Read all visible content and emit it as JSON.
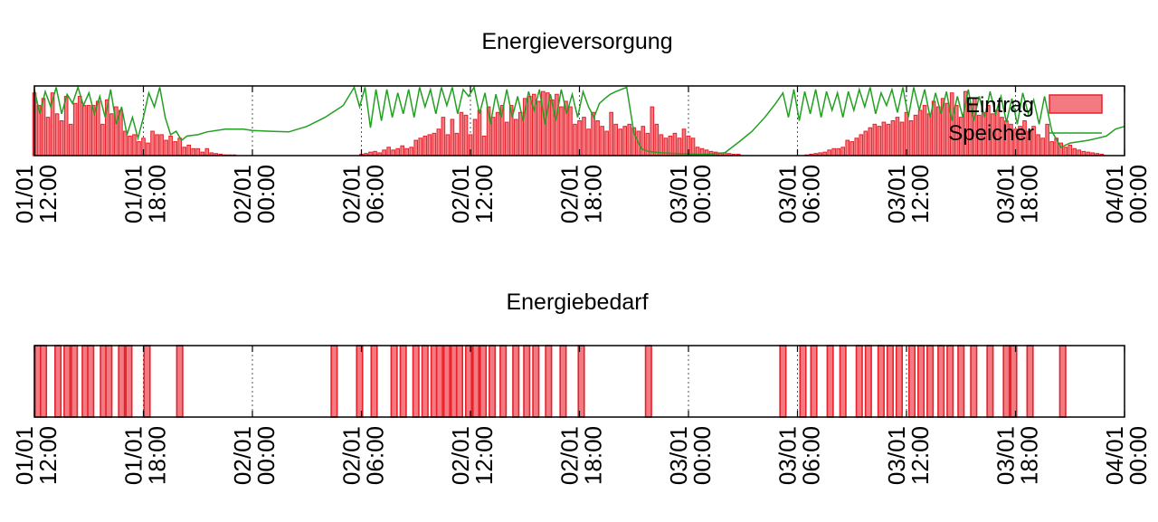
{
  "chart_data": [
    {
      "type": "bar",
      "title": "Energieversorgung",
      "x_range": [
        "01/01 12:00",
        "04/01 00:00"
      ],
      "x_ticks": [
        {
          "h": 0,
          "date": "01/01",
          "time": "12:00"
        },
        {
          "h": 6,
          "date": "01/01",
          "time": "18:00"
        },
        {
          "h": 12,
          "date": "02/01",
          "time": "00:00"
        },
        {
          "h": 18,
          "date": "02/01",
          "time": "06:00"
        },
        {
          "h": 24,
          "date": "02/01",
          "time": "12:00"
        },
        {
          "h": 30,
          "date": "02/01",
          "time": "18:00"
        },
        {
          "h": 36,
          "date": "03/01",
          "time": "00:00"
        },
        {
          "h": 42,
          "date": "03/01",
          "time": "06:00"
        },
        {
          "h": 48,
          "date": "03/01",
          "time": "12:00"
        },
        {
          "h": 54,
          "date": "03/01",
          "time": "18:00"
        },
        {
          "h": 60,
          "date": "04/01",
          "time": "00:00"
        }
      ],
      "ylim": [
        0,
        1
      ],
      "grid": "x only (dotted)",
      "legend": "top-right",
      "series": [
        {
          "name": "Eintrag",
          "kind": "bar",
          "color": "#e8202a",
          "fill": "#f47a82",
          "x_start": 0,
          "x_step": 0.25,
          "values": [
            0.9,
            0.72,
            0.82,
            0.55,
            0.9,
            0.6,
            0.5,
            0.85,
            0.45,
            0.75,
            0.85,
            0.72,
            0.72,
            0.72,
            0.78,
            0.45,
            0.8,
            0.6,
            0.7,
            0.65,
            0.35,
            0.28,
            0.3,
            0.2,
            0.25,
            0.18,
            0.35,
            0.3,
            0.3,
            0.22,
            0.28,
            0.2,
            0.25,
            0.12,
            0.15,
            0.1,
            0.1,
            0.05,
            0.1,
            0.04,
            0.03,
            0.02,
            0.01,
            0.01,
            0.01,
            0,
            0,
            0,
            0,
            0,
            0,
            0,
            0,
            0,
            0,
            0,
            0,
            0,
            0,
            0,
            0,
            0,
            0,
            0,
            0,
            0,
            0,
            0,
            0,
            0,
            0,
            0,
            0.02,
            0.03,
            0.05,
            0.06,
            0.04,
            0.08,
            0.12,
            0.08,
            0.1,
            0.14,
            0.1,
            0.12,
            0.22,
            0.25,
            0.28,
            0.3,
            0.32,
            0.38,
            0.55,
            0.3,
            0.52,
            0.32,
            0.62,
            0.58,
            0.3,
            0.52,
            0.65,
            0.28,
            0.7,
            0.55,
            0.62,
            0.72,
            0.48,
            0.72,
            0.52,
            0.62,
            0.82,
            0.85,
            0.88,
            0.78,
            0.92,
            0.9,
            0.8,
            0.88,
            0.7,
            0.78,
            0.7,
            0.45,
            0.5,
            0.55,
            0.38,
            0.62,
            0.5,
            0.42,
            0.35,
            0.62,
            0.45,
            0.38,
            0.42,
            0.45,
            0.4,
            0.35,
            0.42,
            0.32,
            0.7,
            0.45,
            0.3,
            0.25,
            0.28,
            0.32,
            0.25,
            0.38,
            0.28,
            0.25,
            0.12,
            0.1,
            0.08,
            0.06,
            0.05,
            0.04,
            0.04,
            0.03,
            0.02,
            0.02,
            0,
            0,
            0,
            0,
            0,
            0,
            0,
            0,
            0,
            0,
            0,
            0,
            0,
            0,
            0.01,
            0.02,
            0.03,
            0.04,
            0.05,
            0.08,
            0.1,
            0.1,
            0.12,
            0.22,
            0.2,
            0.25,
            0.3,
            0.35,
            0.4,
            0.45,
            0.42,
            0.48,
            0.45,
            0.5,
            0.55,
            0.48,
            0.62,
            0.5,
            0.58,
            0.65,
            0.72,
            0.6,
            0.78,
            0.7,
            0.82,
            0.75,
            0.9,
            0.72,
            0.55,
            0.92,
            0.75,
            0.82,
            0.58,
            0.62,
            0.72,
            0.6,
            0.65,
            0.55,
            0.5,
            0.45,
            0.38,
            0.42,
            0.5,
            0.35,
            0.42,
            0.3,
            0.25,
            0.45,
            0.2,
            0.25,
            0.18,
            0.12,
            0.15,
            0.1,
            0.08,
            0.06,
            0.05,
            0.04,
            0.03,
            0.02
          ]
        },
        {
          "name": "Speicher",
          "kind": "line",
          "color": "#22a022",
          "points": [
            [
              0,
              0.95
            ],
            [
              0.3,
              0.6
            ],
            [
              0.6,
              0.92
            ],
            [
              0.9,
              0.7
            ],
            [
              1.2,
              0.98
            ],
            [
              1.5,
              0.6
            ],
            [
              1.8,
              0.88
            ],
            [
              2.1,
              0.75
            ],
            [
              2.4,
              0.98
            ],
            [
              2.7,
              0.72
            ],
            [
              3,
              0.9
            ],
            [
              3.3,
              0.6
            ],
            [
              3.6,
              0.85
            ],
            [
              3.9,
              0.55
            ],
            [
              4.2,
              0.95
            ],
            [
              4.5,
              0.45
            ],
            [
              4.8,
              0.7
            ],
            [
              5.1,
              0.3
            ],
            [
              5.4,
              0.55
            ],
            [
              5.7,
              0.25
            ],
            [
              6,
              0.55
            ],
            [
              6.3,
              0.9
            ],
            [
              6.6,
              0.7
            ],
            [
              6.9,
              0.98
            ],
            [
              7.2,
              0.55
            ],
            [
              7.5,
              0.3
            ],
            [
              7.8,
              0.35
            ],
            [
              8.1,
              0.22
            ],
            [
              8.4,
              0.28
            ],
            [
              9,
              0.3
            ],
            [
              9.5,
              0.34
            ],
            [
              10.5,
              0.38
            ],
            [
              11.5,
              0.38
            ],
            [
              12,
              0.36
            ],
            [
              13,
              0.35
            ],
            [
              14,
              0.34
            ],
            [
              15,
              0.42
            ],
            [
              16,
              0.55
            ],
            [
              17,
              0.72
            ],
            [
              17.6,
              0.98
            ],
            [
              17.9,
              0.7
            ],
            [
              18.2,
              0.98
            ],
            [
              18.5,
              0.4
            ],
            [
              18.8,
              0.95
            ],
            [
              19.1,
              0.5
            ],
            [
              19.4,
              0.95
            ],
            [
              19.7,
              0.55
            ],
            [
              20,
              0.9
            ],
            [
              20.3,
              0.6
            ],
            [
              20.6,
              0.95
            ],
            [
              20.9,
              0.55
            ],
            [
              21.2,
              0.98
            ],
            [
              21.5,
              0.7
            ],
            [
              21.8,
              0.95
            ],
            [
              22.1,
              0.6
            ],
            [
              22.4,
              0.98
            ],
            [
              22.7,
              0.72
            ],
            [
              23,
              0.98
            ],
            [
              23.3,
              0.6
            ],
            [
              23.6,
              0.95
            ],
            [
              23.9,
              0.85
            ],
            [
              24.2,
              0.98
            ],
            [
              24.5,
              0.6
            ],
            [
              24.8,
              0.9
            ],
            [
              25.1,
              0.45
            ],
            [
              25.4,
              0.88
            ],
            [
              25.7,
              0.55
            ],
            [
              26,
              0.95
            ],
            [
              26.3,
              0.55
            ],
            [
              26.6,
              0.85
            ],
            [
              26.9,
              0.5
            ],
            [
              27.2,
              0.92
            ],
            [
              27.5,
              0.65
            ],
            [
              27.8,
              0.95
            ],
            [
              28.1,
              0.45
            ],
            [
              28.4,
              0.88
            ],
            [
              28.7,
              0.5
            ],
            [
              29,
              0.95
            ],
            [
              29.3,
              0.6
            ],
            [
              29.6,
              0.88
            ],
            [
              29.9,
              0.55
            ],
            [
              30.2,
              0.92
            ],
            [
              30.5,
              0.7
            ],
            [
              30.8,
              0.55
            ],
            [
              31.1,
              0.75
            ],
            [
              31.4,
              0.82
            ],
            [
              31.7,
              0.88
            ],
            [
              32,
              0.92
            ],
            [
              32.6,
              0.98
            ],
            [
              33,
              0.32
            ],
            [
              33.4,
              0.1
            ],
            [
              33.8,
              0.06
            ],
            [
              34.5,
              0.04
            ],
            [
              35.5,
              0.03
            ],
            [
              36.5,
              0.02
            ],
            [
              37,
              0.02
            ],
            [
              38,
              0.04
            ],
            [
              38.8,
              0.2
            ],
            [
              39.5,
              0.35
            ],
            [
              40.2,
              0.55
            ],
            [
              40.8,
              0.75
            ],
            [
              41.2,
              0.9
            ],
            [
              41.5,
              0.55
            ],
            [
              41.8,
              0.95
            ],
            [
              42.1,
              0.5
            ],
            [
              42.4,
              0.92
            ],
            [
              42.7,
              0.6
            ],
            [
              43,
              0.95
            ],
            [
              43.3,
              0.55
            ],
            [
              43.6,
              0.92
            ],
            [
              43.9,
              0.65
            ],
            [
              44.2,
              0.9
            ],
            [
              44.5,
              0.55
            ],
            [
              44.8,
              0.92
            ],
            [
              45.1,
              0.65
            ],
            [
              45.4,
              0.95
            ],
            [
              45.7,
              0.7
            ],
            [
              46,
              0.98
            ],
            [
              46.3,
              0.6
            ],
            [
              46.6,
              0.9
            ],
            [
              46.9,
              0.72
            ],
            [
              47.2,
              0.95
            ],
            [
              47.5,
              0.62
            ],
            [
              47.8,
              0.98
            ],
            [
              48.1,
              0.55
            ],
            [
              48.4,
              0.98
            ],
            [
              48.7,
              0.65
            ],
            [
              49,
              0.95
            ],
            [
              49.3,
              0.55
            ],
            [
              49.6,
              0.9
            ],
            [
              49.9,
              0.6
            ],
            [
              50.2,
              0.92
            ],
            [
              50.5,
              0.5
            ],
            [
              50.8,
              0.85
            ],
            [
              51.1,
              0.55
            ],
            [
              51.4,
              0.95
            ],
            [
              51.7,
              0.5
            ],
            [
              52,
              0.85
            ],
            [
              52.3,
              0.55
            ],
            [
              52.6,
              0.92
            ],
            [
              52.9,
              0.6
            ],
            [
              53.2,
              0.85
            ],
            [
              53.5,
              0.48
            ],
            [
              53.8,
              0.82
            ],
            [
              54.1,
              0.45
            ],
            [
              54.4,
              0.9
            ],
            [
              54.7,
              0.6
            ],
            [
              55,
              0.8
            ],
            [
              55.3,
              0.45
            ],
            [
              55.6,
              0.85
            ],
            [
              56,
              0.35
            ],
            [
              56.5,
              0.12
            ],
            [
              57,
              0.18
            ],
            [
              57.5,
              0.2
            ],
            [
              58,
              0.22
            ],
            [
              58.5,
              0.25
            ],
            [
              59,
              0.28
            ],
            [
              59.5,
              0.38
            ],
            [
              60,
              0.42
            ]
          ]
        }
      ]
    },
    {
      "type": "bar",
      "title": "Energiebedarf",
      "x_range": [
        "01/01 12:00",
        "04/01 00:00"
      ],
      "x_ticks": [
        {
          "h": 0,
          "date": "01/01",
          "time": "12:00"
        },
        {
          "h": 6,
          "date": "01/01",
          "time": "18:00"
        },
        {
          "h": 12,
          "date": "02/01",
          "time": "00:00"
        },
        {
          "h": 18,
          "date": "02/01",
          "time": "06:00"
        },
        {
          "h": 24,
          "date": "02/01",
          "time": "12:00"
        },
        {
          "h": 30,
          "date": "02/01",
          "time": "18:00"
        },
        {
          "h": 36,
          "date": "03/01",
          "time": "00:00"
        },
        {
          "h": 42,
          "date": "03/01",
          "time": "06:00"
        },
        {
          "h": 48,
          "date": "03/01",
          "time": "12:00"
        },
        {
          "h": 54,
          "date": "03/01",
          "time": "18:00"
        },
        {
          "h": 60,
          "date": "04/01",
          "time": "00:00"
        }
      ],
      "ylim": [
        0,
        1
      ],
      "grid": "x only (dotted)",
      "series": [
        {
          "kind": "bar",
          "color": "#e8202a",
          "fill": "#f47a82",
          "value": 1,
          "x": [
            0.2,
            0.5,
            1.3,
            1.8,
            2.2,
            2.8,
            3.1,
            3.8,
            4.1,
            4.8,
            5.2,
            6.2,
            8.0,
            16.5,
            17.9,
            18.7,
            19.8,
            20.3,
            21.0,
            21.5,
            22.0,
            22.3,
            22.7,
            23.1,
            23.4,
            23.9,
            24.3,
            24.7,
            25.2,
            25.8,
            26.5,
            27.1,
            27.6,
            28.3,
            29.1,
            30.1,
            33.8,
            41.2,
            42.3,
            42.9,
            43.8,
            44.5,
            45.4,
            45.9,
            46.6,
            47.1,
            47.6,
            48.3,
            48.8,
            49.3,
            49.9,
            50.4,
            51.0,
            51.7,
            52.6,
            53.5,
            53.9,
            54.8,
            56.6
          ]
        }
      ]
    }
  ]
}
